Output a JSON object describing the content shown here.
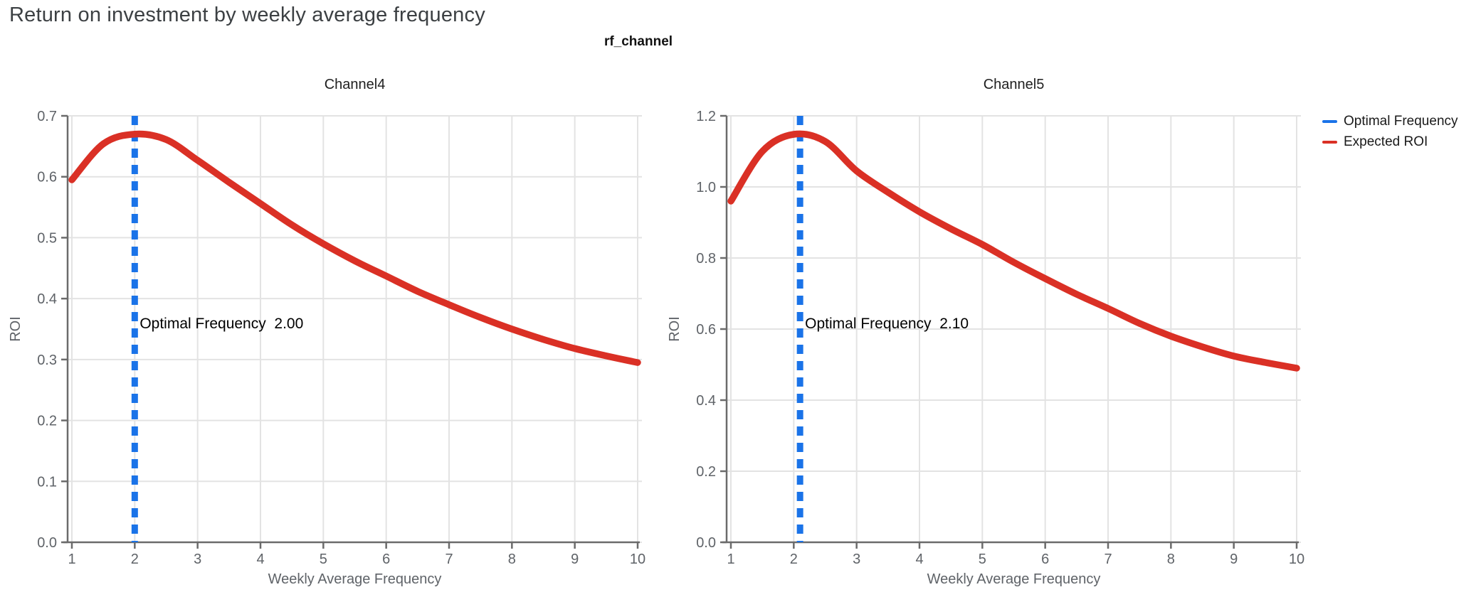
{
  "page": {
    "title": "Return on investment by weekly average frequency"
  },
  "figure": {
    "title": "rf_channel"
  },
  "legend": {
    "position": "top-right",
    "items": [
      {
        "label": "Optimal Frequency",
        "color": "#1a73e8",
        "style": "dashed-vertical-line"
      },
      {
        "label": "Expected ROI",
        "color": "#da3025",
        "style": "solid-line"
      }
    ]
  },
  "colors": {
    "expected_roi_line": "#da3025",
    "optimal_frequency_line": "#1a73e8",
    "gridline": "#e3e3e3",
    "axis_line": "#6b6b6b",
    "tick_label": "#5f6368",
    "page_title": "#3c4043",
    "black_text": "#111111",
    "background": "#ffffff"
  },
  "chart_data": [
    {
      "type": "line",
      "facet_title": "Channel4",
      "xlabel": "Weekly Average Frequency",
      "ylabel": "ROI",
      "xlim": [
        1,
        10
      ],
      "ylim": [
        0,
        0.7
      ],
      "grid": true,
      "xtick_values": [
        1,
        2,
        3,
        4,
        5,
        6,
        7,
        8,
        9,
        10
      ],
      "xtick_labels": [
        "1",
        "2",
        "3",
        "4",
        "5",
        "6",
        "7",
        "8",
        "9",
        "10"
      ],
      "ytick_values": [
        0.0,
        0.1,
        0.2,
        0.3,
        0.4,
        0.5,
        0.6,
        0.7
      ],
      "ytick_labels": [
        "0.0",
        "0.1",
        "0.2",
        "0.3",
        "0.4",
        "0.5",
        "0.6",
        "0.7"
      ],
      "optimal_frequency": 2.0,
      "annotation": {
        "label": "Optimal Frequency",
        "value": "2.00"
      },
      "series": [
        {
          "name": "Expected ROI",
          "x": [
            1,
            1.5,
            2,
            2.5,
            3,
            3.5,
            4,
            4.5,
            5,
            5.5,
            6,
            6.5,
            7,
            7.5,
            8,
            8.5,
            9,
            9.5,
            10
          ],
          "y": [
            0.595,
            0.654,
            0.67,
            0.661,
            0.627,
            0.591,
            0.556,
            0.521,
            0.49,
            0.462,
            0.437,
            0.412,
            0.39,
            0.369,
            0.35,
            0.333,
            0.318,
            0.306,
            0.295
          ]
        }
      ]
    },
    {
      "type": "line",
      "facet_title": "Channel5",
      "xlabel": "Weekly Average Frequency",
      "ylabel": "ROI",
      "xlim": [
        1,
        10
      ],
      "ylim": [
        0,
        1.2
      ],
      "grid": true,
      "xtick_values": [
        1,
        2,
        3,
        4,
        5,
        6,
        7,
        8,
        9,
        10
      ],
      "xtick_labels": [
        "1",
        "2",
        "3",
        "4",
        "5",
        "6",
        "7",
        "8",
        "9",
        "10"
      ],
      "ytick_values": [
        0.0,
        0.2,
        0.4,
        0.6,
        0.8,
        1.0,
        1.2
      ],
      "ytick_labels": [
        "0.0",
        "0.2",
        "0.4",
        "0.6",
        "0.8",
        "1.0",
        "1.2"
      ],
      "optimal_frequency": 2.1,
      "annotation": {
        "label": "Optimal Frequency",
        "value": "2.10"
      },
      "series": [
        {
          "name": "Expected ROI",
          "x": [
            1,
            1.5,
            2,
            2.5,
            3,
            3.5,
            4,
            4.5,
            5,
            5.5,
            6,
            6.5,
            7,
            7.5,
            8,
            8.5,
            9,
            9.5,
            10
          ],
          "y": [
            0.96,
            1.1,
            1.148,
            1.128,
            1.045,
            0.985,
            0.93,
            0.882,
            0.838,
            0.788,
            0.742,
            0.698,
            0.658,
            0.616,
            0.58,
            0.55,
            0.524,
            0.506,
            0.49
          ]
        }
      ]
    }
  ]
}
